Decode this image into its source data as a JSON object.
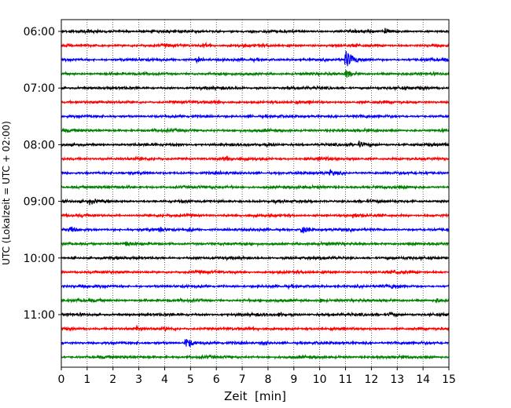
{
  "chart_data": {
    "type": "line",
    "subtype": "seismogram-helicorder",
    "title": "",
    "xlabel": "Zeit  [min]",
    "ylabel": "UTC (Lokalzeit = UTC + 02:00)",
    "xlim": [
      0,
      15
    ],
    "x_ticks": [
      "0",
      "1",
      "2",
      "3",
      "4",
      "5",
      "6",
      "7",
      "8",
      "9",
      "10",
      "11",
      "12",
      "13",
      "14",
      "15"
    ],
    "y_ticks": [
      "06:00",
      "07:00",
      "08:00",
      "09:00",
      "10:00",
      "11:00"
    ],
    "grid": "vertical dotted",
    "trace_colors": [
      "#000000",
      "#ff0000",
      "#0000ff",
      "#008000"
    ],
    "traces": [
      {
        "start": "06:00",
        "color": "#000000",
        "events": [
          {
            "t": 12.5,
            "amp": 0.45
          }
        ]
      },
      {
        "start": "06:15",
        "color": "#ff0000",
        "events": [
          {
            "t": 5.5,
            "amp": 0.3
          }
        ]
      },
      {
        "start": "06:30",
        "color": "#0000ff",
        "events": [
          {
            "t": 11.0,
            "amp": 2.4
          },
          {
            "t": 5.2,
            "amp": 0.4
          }
        ]
      },
      {
        "start": "06:45",
        "color": "#008000",
        "events": [
          {
            "t": 11.0,
            "amp": 0.7
          }
        ]
      },
      {
        "start": "07:00",
        "color": "#000000",
        "events": []
      },
      {
        "start": "07:15",
        "color": "#ff0000",
        "events": []
      },
      {
        "start": "07:30",
        "color": "#0000ff",
        "events": []
      },
      {
        "start": "07:45",
        "color": "#008000",
        "events": []
      },
      {
        "start": "08:00",
        "color": "#000000",
        "events": [
          {
            "t": 11.5,
            "amp": 0.35
          }
        ]
      },
      {
        "start": "08:15",
        "color": "#ff0000",
        "events": [
          {
            "t": 6.3,
            "amp": 0.3
          },
          {
            "t": 10.0,
            "amp": 0.25
          }
        ]
      },
      {
        "start": "08:30",
        "color": "#0000ff",
        "events": [
          {
            "t": 10.4,
            "amp": 0.4
          }
        ]
      },
      {
        "start": "08:45",
        "color": "#008000",
        "events": []
      },
      {
        "start": "09:00",
        "color": "#000000",
        "events": [
          {
            "t": 1.1,
            "amp": 0.3
          }
        ]
      },
      {
        "start": "09:15",
        "color": "#ff0000",
        "events": [
          {
            "t": 11.3,
            "amp": 0.4
          }
        ]
      },
      {
        "start": "09:30",
        "color": "#0000ff",
        "events": [
          {
            "t": 9.3,
            "amp": 1.0
          },
          {
            "t": 0.3,
            "amp": 0.4
          },
          {
            "t": 3.8,
            "amp": 0.35
          },
          {
            "t": 4.9,
            "amp": 0.3
          }
        ]
      },
      {
        "start": "09:45",
        "color": "#008000",
        "events": [
          {
            "t": 2.5,
            "amp": 0.5
          }
        ]
      },
      {
        "start": "10:00",
        "color": "#000000",
        "events": []
      },
      {
        "start": "10:15",
        "color": "#ff0000",
        "events": [
          {
            "t": 12.9,
            "amp": 0.25
          }
        ]
      },
      {
        "start": "10:30",
        "color": "#0000ff",
        "events": [
          {
            "t": 12.8,
            "amp": 0.3
          }
        ]
      },
      {
        "start": "10:45",
        "color": "#008000",
        "events": [
          {
            "t": 14.5,
            "amp": 0.35
          },
          {
            "t": 10.0,
            "amp": 0.25
          }
        ]
      },
      {
        "start": "11:00",
        "color": "#000000",
        "events": [
          {
            "t": 12.7,
            "amp": 0.4
          },
          {
            "t": 8.4,
            "amp": 0.3
          }
        ]
      },
      {
        "start": "11:15",
        "color": "#ff0000",
        "events": [
          {
            "t": 2.9,
            "amp": 0.35
          },
          {
            "t": 4.0,
            "amp": 0.2
          }
        ]
      },
      {
        "start": "11:30",
        "color": "#0000ff",
        "events": [
          {
            "t": 4.8,
            "amp": 1.5
          },
          {
            "t": 7.8,
            "amp": 0.35
          }
        ]
      },
      {
        "start": "11:45",
        "color": "#008000",
        "events": []
      }
    ]
  }
}
